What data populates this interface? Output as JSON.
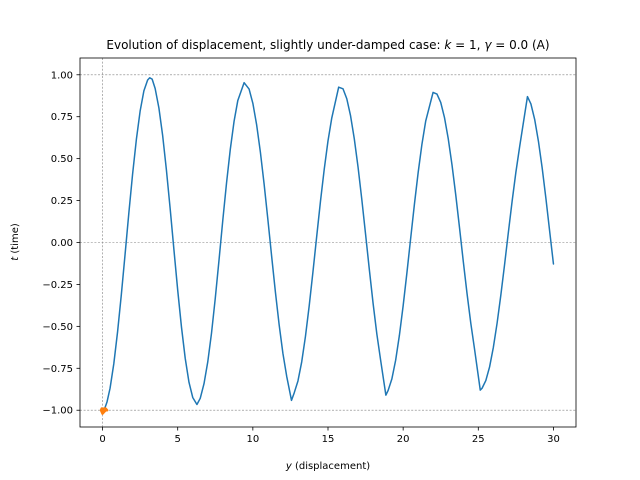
{
  "chart_data": {
    "type": "line",
    "title": {
      "prefix": "Evolution of displacement, slightly under-damped case: ",
      "k_symbol": "k",
      "k_eq": " = 1, ",
      "gamma_symbol": "γ",
      "gamma_eq": " = 0.0 (A)"
    },
    "xlabel": {
      "symbol": "y",
      "text": " (displacement)"
    },
    "ylabel": {
      "symbol": "t",
      "text": " (time)"
    },
    "xlim": [
      -1.5,
      31.5
    ],
    "ylim": [
      -1.1,
      1.1
    ],
    "xticks": [
      0,
      5,
      10,
      15,
      20,
      25,
      30
    ],
    "xtick_labels": [
      "0",
      "5",
      "10",
      "15",
      "20",
      "25",
      "30"
    ],
    "yticks": [
      -1.0,
      -0.75,
      -0.5,
      -0.25,
      0.0,
      0.25,
      0.5,
      0.75,
      1.0
    ],
    "ytick_labels": [
      "−1.00",
      "−0.75",
      "−0.50",
      "−0.25",
      "0.00",
      "0.25",
      "0.50",
      "0.75",
      "1.00"
    ],
    "reference_lines": {
      "x": [
        0
      ],
      "y": [
        -1.0,
        0.0,
        1.0
      ]
    },
    "grid": false,
    "series": [
      {
        "color": "#1f77b4",
        "x": [
          0.0,
          0.15,
          0.3,
          0.5,
          0.75,
          1.0,
          1.25,
          1.5,
          1.75,
          2.0,
          2.25,
          2.5,
          2.75,
          3.0,
          3.14,
          3.3,
          3.5,
          3.75,
          4.0,
          4.25,
          4.5,
          4.75,
          5.0,
          5.25,
          5.5,
          5.75,
          6.0,
          6.28,
          6.5,
          6.75,
          7.0,
          7.25,
          7.5,
          7.75,
          8.0,
          8.25,
          8.5,
          8.75,
          9.0,
          9.42,
          9.75,
          10.0,
          10.25,
          10.5,
          10.75,
          11.0,
          11.25,
          11.5,
          11.75,
          12.0,
          12.25,
          12.57,
          12.75,
          13.0,
          13.25,
          13.5,
          13.75,
          14.0,
          14.25,
          14.5,
          14.75,
          15.0,
          15.25,
          15.71,
          16.0,
          16.25,
          16.5,
          16.75,
          17.0,
          17.25,
          17.5,
          17.75,
          18.0,
          18.25,
          18.5,
          18.85,
          19.0,
          19.25,
          19.5,
          19.75,
          20.0,
          20.25,
          20.5,
          20.75,
          21.0,
          21.25,
          21.5,
          21.99,
          22.25,
          22.5,
          22.75,
          23.0,
          23.25,
          23.5,
          23.75,
          24.0,
          24.25,
          24.5,
          24.75,
          25.13,
          25.25,
          25.5,
          25.75,
          26.0,
          26.25,
          26.5,
          26.75,
          27.0,
          27.25,
          27.5,
          27.75,
          28.27,
          28.5,
          28.75,
          29.0,
          29.25,
          29.5,
          29.75,
          30.0
        ],
        "y": [
          -1.0,
          -0.988,
          -0.95,
          -0.869,
          -0.722,
          -0.532,
          -0.311,
          -0.07,
          0.176,
          0.409,
          0.614,
          0.783,
          0.904,
          0.969,
          0.982,
          0.974,
          0.918,
          0.802,
          0.637,
          0.432,
          0.201,
          -0.044,
          -0.284,
          -0.503,
          -0.69,
          -0.833,
          -0.924,
          -0.966,
          -0.929,
          -0.842,
          -0.712,
          -0.54,
          -0.333,
          -0.104,
          0.132,
          0.356,
          0.556,
          0.722,
          0.847,
          0.953,
          0.915,
          0.83,
          0.703,
          0.54,
          0.348,
          0.137,
          -0.082,
          -0.295,
          -0.491,
          -0.661,
          -0.797,
          -0.941,
          -0.897,
          -0.826,
          -0.712,
          -0.56,
          -0.377,
          -0.174,
          0.038,
          0.246,
          0.437,
          0.606,
          0.742,
          0.926,
          0.916,
          0.857,
          0.756,
          0.618,
          0.449,
          0.256,
          0.049,
          -0.161,
          -0.363,
          -0.546,
          -0.701,
          -0.91,
          -0.882,
          -0.813,
          -0.702,
          -0.554,
          -0.377,
          -0.181,
          0.025,
          0.228,
          0.418,
          0.586,
          0.724,
          0.895,
          0.885,
          0.835,
          0.745,
          0.619,
          0.463,
          0.283,
          0.088,
          -0.112,
          -0.304,
          -0.481,
          -0.636,
          -0.88,
          -0.869,
          -0.823,
          -0.742,
          -0.626,
          -0.481,
          -0.313,
          -0.13,
          0.06,
          0.246,
          0.419,
          0.571,
          0.87,
          0.826,
          0.734,
          0.604,
          0.444,
          0.261,
          0.065,
          -0.128
        ]
      },
      {
        "color": "#ff7f0e",
        "x": [
          0.0,
          -0.05,
          -0.1,
          -0.05,
          0.0,
          0.1,
          0.2,
          0.3,
          0.2,
          0.1
        ],
        "y": [
          -1.0,
          -0.99,
          -1.0,
          -1.01,
          -1.02,
          -1.01,
          -1.0,
          -1.0,
          -0.99,
          -0.99
        ]
      }
    ]
  }
}
